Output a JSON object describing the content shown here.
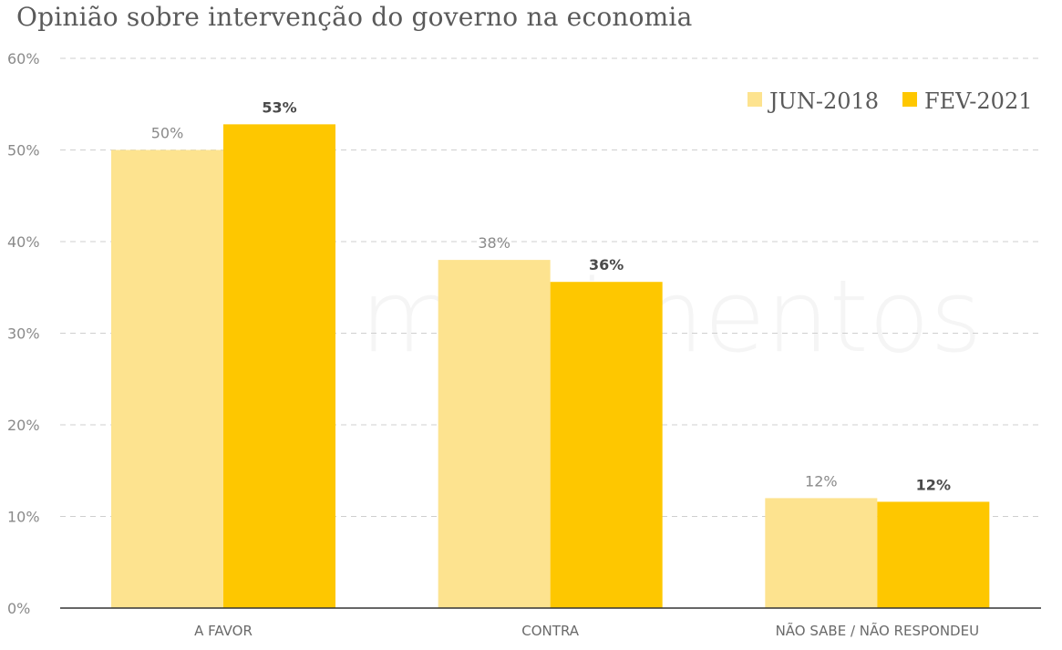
{
  "chart_data": {
    "type": "bar",
    "title": "Opinião sobre intervenção do governo na economia",
    "categories": [
      "A FAVOR",
      "CONTRA",
      "NÃO SABE / NÃO RESPONDEU"
    ],
    "series": [
      {
        "name": "JUN-2018",
        "values": [
          50,
          38,
          12
        ],
        "labels": [
          "50%",
          "38%",
          "12%"
        ],
        "color": "#fde38f"
      },
      {
        "name": "FEV-2021",
        "values": [
          52.8,
          35.6,
          11.6
        ],
        "labels": [
          "53%",
          "36%",
          "12%"
        ],
        "color": "#fec700"
      }
    ],
    "ylim": [
      0,
      60
    ],
    "yticks": [
      "0%",
      "10%",
      "20%",
      "30%",
      "40%",
      "50%",
      "60%"
    ],
    "grid": true,
    "legend": "top-right"
  },
  "watermark": "movimentos"
}
